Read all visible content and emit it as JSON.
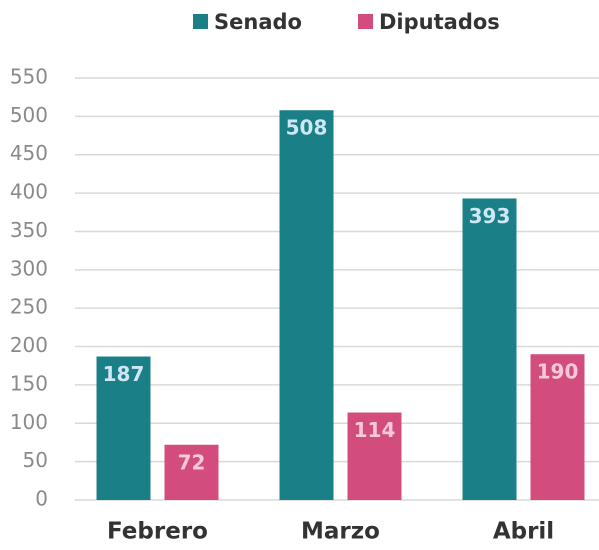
{
  "chart_data": {
    "type": "bar",
    "categories": [
      "Febrero",
      "Marzo",
      "Abril"
    ],
    "series": [
      {
        "name": "Senado",
        "color": "#1b7f87",
        "values": [
          187,
          508,
          393
        ]
      },
      {
        "name": "Diputados",
        "color": "#d34c7e",
        "values": [
          72,
          114,
          190
        ]
      }
    ],
    "ylim": [
      0,
      550
    ],
    "yticks": [
      0,
      50,
      100,
      150,
      200,
      250,
      300,
      350,
      400,
      450,
      500,
      550
    ],
    "grid": true,
    "legend": "top"
  }
}
